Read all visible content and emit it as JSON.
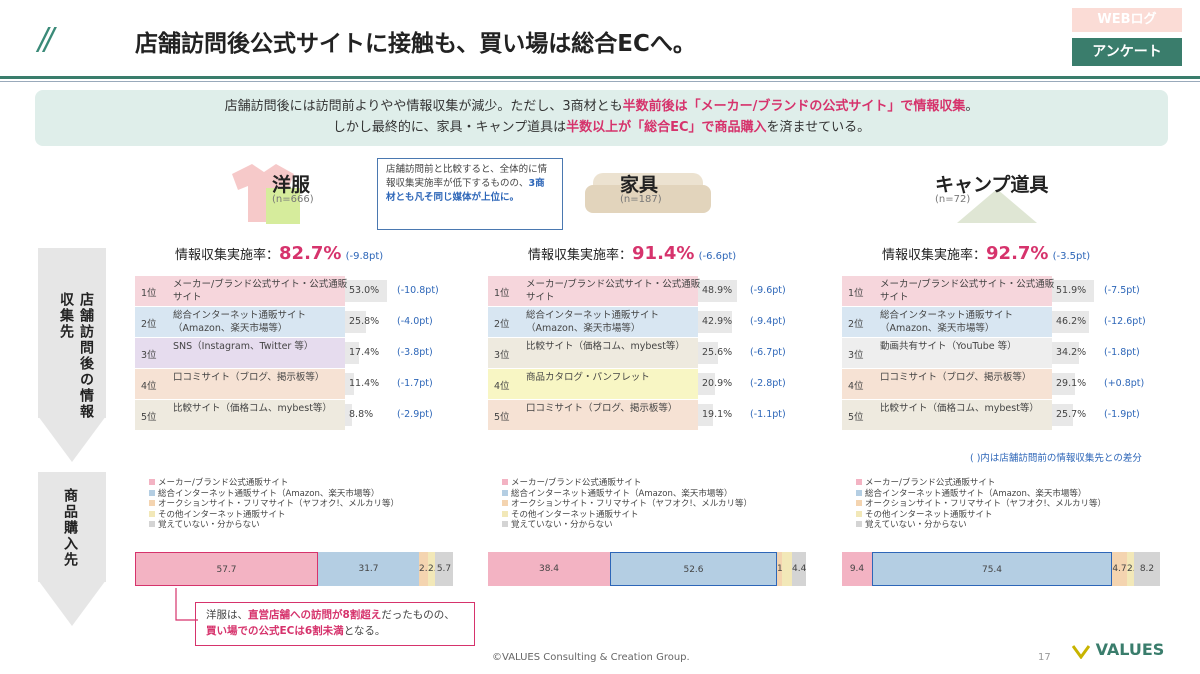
{
  "header": {
    "title": "店舗訪問後公式サイトに接触も、買い場は総合ECへ。",
    "tags": [
      "WEBログ",
      "アンケート"
    ]
  },
  "summary": {
    "line1_a": "店舗訪問後には訪問前よりやや情報収集が減少。ただし、3商材とも",
    "line1_em": "半数前後は「メーカー/ブランドの公式サイト」で情報収集",
    "line1_b": "。",
    "line2_a": "しかし最終的に、家具・キャンプ道具は",
    "line2_em1": "半数以上が「総合EC」で商品購入",
    "line2_b": "を済ませている。"
  },
  "callout": {
    "text": "店舗訪問前と比較すると、全体的に情報収集実施率が低下するものの、",
    "em": "3商材とも凡そ同じ媒体が上位に。"
  },
  "left_labels": {
    "info": "店舗訪問後の情報収集先",
    "purchase": "商品購入先"
  },
  "rate_label": "情報収集実施率：",
  "categories": [
    {
      "name": "洋服",
      "n": "(n=666)",
      "rate": "82.7%",
      "rate_delta": "(-9.8pt)",
      "ranks": [
        {
          "rank": "1位",
          "label": "メーカー/ブランド公式サイト・公式通販サイト",
          "pct": "53.0%",
          "delta": "(-10.8pt)",
          "value": 53.0,
          "color": "#f6d6dc"
        },
        {
          "rank": "2位",
          "label": "総合インターネット通販サイト（Amazon、楽天市場等）",
          "pct": "25.8%",
          "delta": "(-4.0pt)",
          "value": 25.8,
          "color": "#d8e6f2"
        },
        {
          "rank": "3位",
          "label": "SNS（Instagram、Twitter 等）",
          "pct": "17.4%",
          "delta": "(-3.8pt)",
          "value": 17.4,
          "color": "#e6dcee"
        },
        {
          "rank": "4位",
          "label": "口コミサイト（ブログ、掲示板等）",
          "pct": "11.4%",
          "delta": "(-1.7pt)",
          "value": 11.4,
          "color": "#f6e2d4"
        },
        {
          "rank": "5位",
          "label": "比較サイト（価格コム、mybest等）",
          "pct": "8.8%",
          "delta": "(-2.9pt)",
          "value": 8.8,
          "color": "#eeeadf"
        }
      ],
      "purchase": [
        {
          "value": 57.7,
          "label": "57.7",
          "color": "#f3b3c3"
        },
        {
          "value": 31.7,
          "label": "31.7",
          "color": "#b4cee3"
        },
        {
          "value": 2.7,
          "label": "2.7",
          "color": "#f4d4b0"
        },
        {
          "value": 2.2,
          "label": "2.2",
          "color": "#f2e8b8"
        },
        {
          "value": 5.7,
          "label": "5.7",
          "color": "#d4d4d4"
        }
      ]
    },
    {
      "name": "家具",
      "n": "(n=187)",
      "rate": "91.4%",
      "rate_delta": "(-6.6pt)",
      "ranks": [
        {
          "rank": "1位",
          "label": "メーカー/ブランド公式サイト・公式通販サイト",
          "pct": "48.9%",
          "delta": "(-9.6pt)",
          "value": 48.9,
          "color": "#f6d6dc"
        },
        {
          "rank": "2位",
          "label": "総合インターネット通販サイト（Amazon、楽天市場等）",
          "pct": "42.9%",
          "delta": "(-9.4pt)",
          "value": 42.9,
          "color": "#d8e6f2"
        },
        {
          "rank": "3位",
          "label": "比較サイト（価格コム、mybest等）",
          "pct": "25.6%",
          "delta": "(-6.7pt)",
          "value": 25.6,
          "color": "#eeeadf"
        },
        {
          "rank": "4位",
          "label": "商品カタログ・パンフレット",
          "pct": "20.9%",
          "delta": "(-2.8pt)",
          "value": 20.9,
          "color": "#f8f6c4"
        },
        {
          "rank": "5位",
          "label": "口コミサイト（ブログ、掲示板等）",
          "pct": "19.1%",
          "delta": "(-1.1pt)",
          "value": 19.1,
          "color": "#f6e2d4"
        }
      ],
      "purchase": [
        {
          "value": 38.4,
          "label": "38.4",
          "color": "#f3b3c3"
        },
        {
          "value": 52.6,
          "label": "52.6",
          "color": "#b4cee3"
        },
        {
          "value": 1.5,
          "label": "1.5",
          "color": "#f4d4b0"
        },
        {
          "value": 3.0,
          "label": "",
          "color": "#f2e8b8"
        },
        {
          "value": 4.4,
          "label": "4.4",
          "color": "#d4d4d4"
        }
      ]
    },
    {
      "name": "キャンプ道具",
      "n": "(n=72)",
      "rate": "92.7%",
      "rate_delta": "(-3.5pt)",
      "ranks": [
        {
          "rank": "1位",
          "label": "メーカー/ブランド公式サイト・公式通販サイト",
          "pct": "51.9%",
          "delta": "(-7.5pt)",
          "value": 51.9,
          "color": "#f6d6dc"
        },
        {
          "rank": "2位",
          "label": "総合インターネット通販サイト（Amazon、楽天市場等）",
          "pct": "46.2%",
          "delta": "(-12.6pt)",
          "value": 46.2,
          "color": "#d8e6f2"
        },
        {
          "rank": "3位",
          "label": "動画共有サイト（YouTube 等）",
          "pct": "34.2%",
          "delta": "(-1.8pt)",
          "value": 34.2,
          "color": "#eeeeee"
        },
        {
          "rank": "4位",
          "label": "口コミサイト（ブログ、掲示板等）",
          "pct": "29.1%",
          "delta": "(+0.8pt)",
          "value": 29.1,
          "color": "#f6e2d4"
        },
        {
          "rank": "5位",
          "label": "比較サイト（価格コム、mybest等）",
          "pct": "25.7%",
          "delta": "(-1.9pt)",
          "value": 25.7,
          "color": "#eeeadf"
        }
      ],
      "purchase": [
        {
          "value": 9.4,
          "label": "9.4",
          "color": "#f3b3c3"
        },
        {
          "value": 75.4,
          "label": "75.4",
          "color": "#b4cee3"
        },
        {
          "value": 4.7,
          "label": "4.7",
          "color": "#f4d4b0"
        },
        {
          "value": 2.2,
          "label": "2.2",
          "color": "#f2e8b8"
        },
        {
          "value": 8.2,
          "label": "8.2",
          "color": "#d4d4d4"
        }
      ]
    }
  ],
  "legend": [
    {
      "label": "メーカー/ブランド公式通販サイト",
      "color": "#f3b3c3"
    },
    {
      "label": "総合インターネット通販サイト（Amazon、楽天市場等）",
      "color": "#b4cee3"
    },
    {
      "label": "オークションサイト・フリマサイト（ヤフオク!、メルカリ等）",
      "color": "#f4d4b0"
    },
    {
      "label": "その他インターネット通販サイト",
      "color": "#f2e8b8"
    },
    {
      "label": "覚えていない・分からない",
      "color": "#d4d4d4"
    }
  ],
  "delta_note": "( )内は店舗訪問前の情報収集先との差分",
  "note": {
    "a": "洋服は、",
    "em1": "直営店舗への訪問が8割超え",
    "b": "だったものの、",
    "em2": "買い場での公式ECは6割未満",
    "c": "となる。"
  },
  "footer": "©VALUES Consulting & Creation Group.",
  "page_number": "17",
  "logo": "VALUES"
}
